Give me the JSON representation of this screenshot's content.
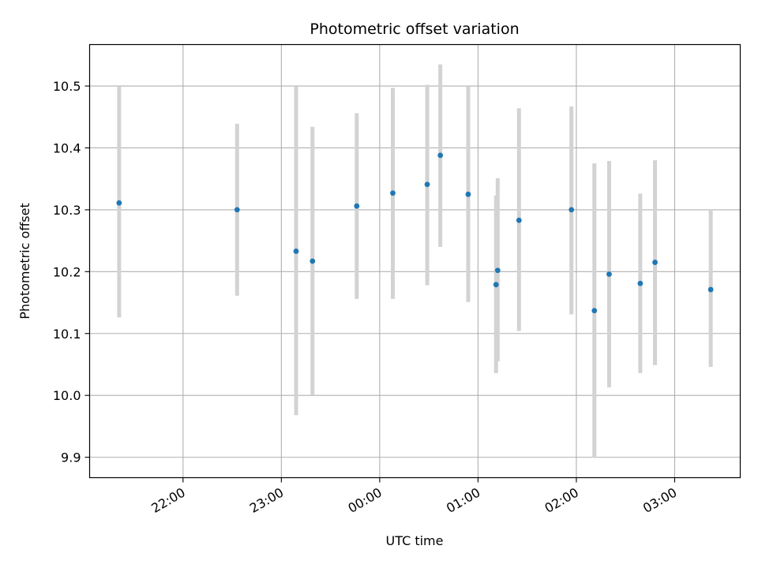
{
  "chart_data": {
    "type": "scatter",
    "title": "Photometric offset variation",
    "xlabel": "UTC time",
    "ylabel": "Photometric offset",
    "x_unit": "UTC time (HH:MM)",
    "xlim": [
      "21:03",
      "03:40"
    ],
    "ylim": [
      9.867,
      10.567
    ],
    "grid": true,
    "x_ticks": [
      "22:00",
      "23:00",
      "00:00",
      "01:00",
      "02:00",
      "03:00"
    ],
    "y_ticks": [
      "9.9",
      "10.0",
      "10.1",
      "10.2",
      "10.3",
      "10.4",
      "10.5"
    ],
    "point_color": "#1f77b4",
    "errorbar_color": "#d3d3d3",
    "points": [
      {
        "x": "21:21",
        "y": 10.311,
        "ylow": 10.126,
        "yhigh": 10.499
      },
      {
        "x": "22:33",
        "y": 10.3,
        "ylow": 10.161,
        "yhigh": 10.439
      },
      {
        "x": "23:09",
        "y": 10.233,
        "ylow": 9.968,
        "yhigh": 10.499
      },
      {
        "x": "23:19",
        "y": 10.217,
        "ylow": 10.001,
        "yhigh": 10.434
      },
      {
        "x": "23:46",
        "y": 10.306,
        "ylow": 10.156,
        "yhigh": 10.456
      },
      {
        "x": "00:08",
        "y": 10.327,
        "ylow": 10.156,
        "yhigh": 10.497
      },
      {
        "x": "00:29",
        "y": 10.341,
        "ylow": 10.178,
        "yhigh": 10.502
      },
      {
        "x": "00:37",
        "y": 10.388,
        "ylow": 10.24,
        "yhigh": 10.535
      },
      {
        "x": "00:54",
        "y": 10.325,
        "ylow": 10.151,
        "yhigh": 10.499
      },
      {
        "x": "01:11",
        "y": 10.179,
        "ylow": 10.036,
        "yhigh": 10.323
      },
      {
        "x": "01:12",
        "y": 10.202,
        "ylow": 10.055,
        "yhigh": 10.351
      },
      {
        "x": "01:25",
        "y": 10.283,
        "ylow": 10.104,
        "yhigh": 10.464
      },
      {
        "x": "01:57",
        "y": 10.3,
        "ylow": 10.131,
        "yhigh": 10.467
      },
      {
        "x": "02:11",
        "y": 10.137,
        "ylow": 9.899,
        "yhigh": 10.375
      },
      {
        "x": "02:20",
        "y": 10.196,
        "ylow": 10.013,
        "yhigh": 10.379
      },
      {
        "x": "02:39",
        "y": 10.181,
        "ylow": 10.036,
        "yhigh": 10.326
      },
      {
        "x": "02:48",
        "y": 10.215,
        "ylow": 10.049,
        "yhigh": 10.38
      },
      {
        "x": "03:22",
        "y": 10.171,
        "ylow": 10.046,
        "yhigh": 10.3
      }
    ]
  }
}
